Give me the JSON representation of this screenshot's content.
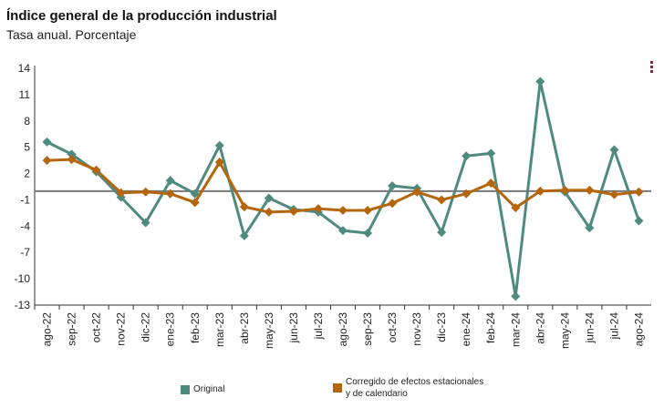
{
  "header": {
    "title": "Índice general de la producción industrial",
    "subtitle": "Tasa anual. Porcentaje"
  },
  "menu": {
    "icon": "more-vertical-icon"
  },
  "colors": {
    "original": "#4f8a7e",
    "corrected": "#b5650c",
    "zero_line": "#777777"
  },
  "legend": {
    "original": "Original",
    "corrected": "Corregido de efectos estacionales y de calendario"
  },
  "chart_data": {
    "type": "line",
    "title": "Índice general de la producción industrial",
    "subtitle": "Tasa anual. Porcentaje",
    "categories": [
      "ago-22",
      "sep-22",
      "oct-22",
      "nov-22",
      "dic-22",
      "ene-23",
      "feb-23",
      "mar-23",
      "abr-23",
      "may-23",
      "jun-23",
      "jul-23",
      "ago-23",
      "sep-23",
      "oct-23",
      "nov-23",
      "dic-23",
      "ene-24",
      "feb-24",
      "mar-24",
      "abr-24",
      "may-24",
      "jun-24",
      "jul-24",
      "ago-24"
    ],
    "yticks": [
      14,
      11,
      8,
      5,
      2,
      -1,
      -4,
      -7,
      -10,
      -13
    ],
    "ylim": [
      -13,
      14
    ],
    "series": [
      {
        "name": "Original",
        "values": [
          5.6,
          4.2,
          2.2,
          -0.7,
          -3.6,
          1.2,
          -0.3,
          5.2,
          -5.1,
          -0.8,
          -2.1,
          -2.4,
          -4.5,
          -4.8,
          0.6,
          0.3,
          -4.7,
          4.0,
          4.3,
          -12.0,
          12.5,
          -0.1,
          -4.2,
          4.7,
          -3.4
        ]
      },
      {
        "name": "Corregido de efectos estacionales y de calendario",
        "values": [
          3.5,
          3.6,
          2.4,
          -0.2,
          -0.1,
          -0.3,
          -1.3,
          3.3,
          -1.8,
          -2.4,
          -2.3,
          -2.0,
          -2.2,
          -2.2,
          -1.4,
          -0.1,
          -1.0,
          -0.3,
          0.9,
          -1.9,
          0.0,
          0.1,
          0.1,
          -0.4,
          -0.1
        ]
      }
    ],
    "zero_line": 0,
    "grid": false,
    "legend_position": "bottom"
  }
}
